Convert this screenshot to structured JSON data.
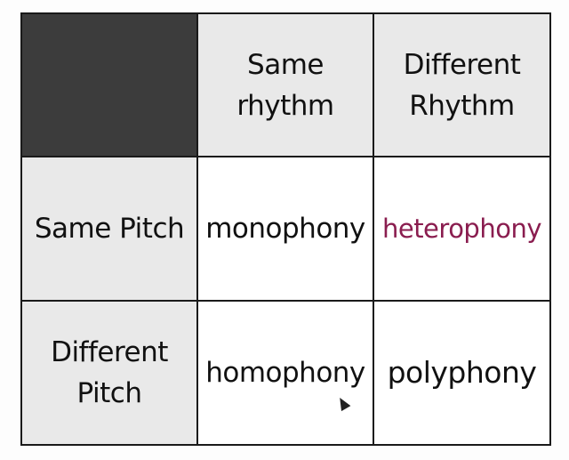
{
  "table": {
    "corner_label": "",
    "column_headers": [
      [
        "Same",
        "rhythm"
      ],
      [
        "Different",
        "Rhythm"
      ]
    ],
    "rows": [
      {
        "header": [
          "Same Pitch"
        ],
        "cells": [
          "monophony",
          "heterophony"
        ]
      },
      {
        "header": [
          "Different",
          "Pitch"
        ],
        "cells": [
          "homophony",
          "polyphony"
        ]
      }
    ]
  },
  "colors": {
    "corner": "#3c3c3c",
    "header_background": "#e9e9e9",
    "accent_text": "#8a1d4f"
  },
  "icons": [
    "mouse-pointer-icon"
  ]
}
